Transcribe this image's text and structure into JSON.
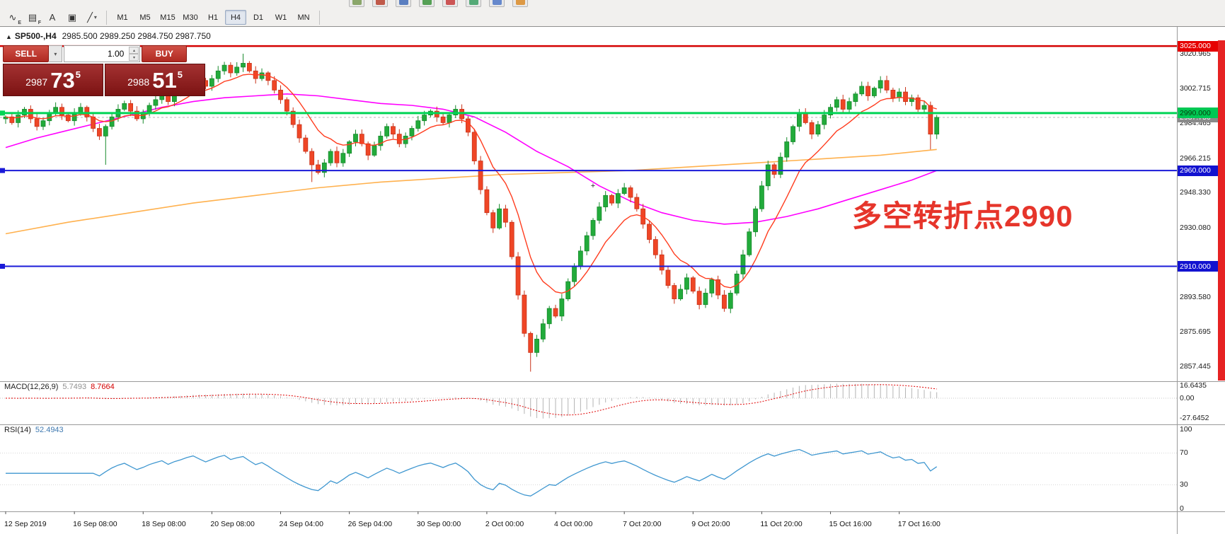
{
  "toolbar": {
    "clipped_icon_colors": [
      "#8aa66a",
      "#c05a4a",
      "#5a7ec0",
      "#55a055",
      "#cc5555",
      "#55aa77",
      "#6688cc",
      "#dd9944"
    ],
    "tools": [
      {
        "name": "market-watch-tool-icon",
        "glyph": "∿",
        "sub": "E"
      },
      {
        "name": "data-window-tool-icon",
        "glyph": "▤",
        "sub": "F"
      },
      {
        "name": "text-tool-icon",
        "glyph": "A"
      },
      {
        "name": "text-label-tool-icon",
        "glyph": "▣"
      },
      {
        "name": "line-studies-tool-icon",
        "glyph": "╱",
        "dropdown": "▾"
      }
    ],
    "timeframes": [
      "M1",
      "M5",
      "M15",
      "M30",
      "H1",
      "H4",
      "D1",
      "W1",
      "MN"
    ],
    "active_timeframe": "H4"
  },
  "chart": {
    "collapse_icon": "▲",
    "symbol_period": "SP500-,H4",
    "ohlc_text": "2985.500 2989.250 2984.750 2987.750",
    "annotation": "多空转折点2990",
    "annotation_color": "#e6352b"
  },
  "trade_panel": {
    "sell_label": "SELL",
    "buy_label": "BUY",
    "sell_dropdown_icon": "▾",
    "volume_value": "1.00",
    "spinner_up_icon": "▴",
    "spinner_down_icon": "▾",
    "sell_price": {
      "main": "2987",
      "pips": "73",
      "sup": "5"
    },
    "buy_price": {
      "main": "2988",
      "pips": "51",
      "sup": "5"
    }
  },
  "price_axis": {
    "ticks": [
      {
        "value": 3020.965,
        "label": "3020.965"
      },
      {
        "value": 3002.715,
        "label": "3002.715"
      },
      {
        "value": 2984.465,
        "label": "2984.465"
      },
      {
        "value": 2966.215,
        "label": "2966.215"
      },
      {
        "value": 2948.33,
        "label": "2948.330"
      },
      {
        "value": 2930.08,
        "label": "2930.080"
      },
      {
        "value": 2893.58,
        "label": "2893.580"
      },
      {
        "value": 2875.695,
        "label": "2875.695"
      },
      {
        "value": 2857.445,
        "label": "2857.445"
      }
    ]
  },
  "macd_panel": {
    "title": "MACD(12,26,9)",
    "value_main": "5.7493",
    "value_signal": "8.7664",
    "axis": [
      {
        "value": 16.6435,
        "label": "16.6435"
      },
      {
        "value": 0,
        "label": "0.00"
      },
      {
        "value": -27.6452,
        "label": "-27.6452"
      }
    ]
  },
  "rsi_panel": {
    "title": "RSI(14)",
    "value": "52.4943",
    "axis": [
      {
        "value": 100,
        "label": "100"
      },
      {
        "value": 70,
        "label": "70"
      },
      {
        "value": 30,
        "label": "30"
      },
      {
        "value": 0,
        "label": "0"
      }
    ]
  },
  "time_axis": {
    "labels": [
      "12 Sep 2019",
      "16 Sep 08:00",
      "18 Sep 08:00",
      "20 Sep 08:00",
      "24 Sep 04:00",
      "26 Sep 04:00",
      "30 Sep 00:00",
      "2 Oct 00:00",
      "4 Oct 00:00",
      "7 Oct 20:00",
      "9 Oct 20:00",
      "11 Oct 20:00",
      "15 Oct 16:00",
      "17 Oct 16:00"
    ]
  },
  "chart_data": {
    "type": "candlestick",
    "symbol": "SP500-",
    "timeframe": "H4",
    "last_ohlc": {
      "open": 2985.5,
      "high": 2989.25,
      "low": 2984.75,
      "close": 2987.75
    },
    "bid": 2987.75,
    "price_axis_range": [
      2850,
      3035
    ],
    "closes": [
      2988,
      2985,
      2989,
      2992,
      2987,
      2983,
      2986,
      2990,
      2993,
      2989,
      2986,
      2990,
      2993,
      2988,
      2982,
      2978,
      2983,
      2988,
      2992,
      2995,
      2991,
      2987,
      2990,
      2994,
      2997,
      3000,
      2996,
      3000,
      3003,
      3007,
      3010,
      3007,
      3004,
      3008,
      3012,
      3015,
      3011,
      3014,
      3016,
      3012,
      3008,
      3011,
      3007,
      3002,
      2997,
      2991,
      2984,
      2977,
      2970,
      2963,
      2959,
      2964,
      2970,
      2964,
      2969,
      2975,
      2979,
      2974,
      2968,
      2973,
      2978,
      2983,
      2979,
      2974,
      2978,
      2982,
      2986,
      2989,
      2991,
      2988,
      2985,
      2989,
      2992,
      2987,
      2980,
      2965,
      2950,
      2938,
      2930,
      2940,
      2933,
      2915,
      2895,
      2875,
      2865,
      2872,
      2880,
      2888,
      2884,
      2893,
      2902,
      2910,
      2918,
      2926,
      2934,
      2941,
      2947,
      2943,
      2948,
      2951,
      2946,
      2940,
      2932,
      2924,
      2916,
      2908,
      2900,
      2893,
      2898,
      2904,
      2897,
      2890,
      2896,
      2903,
      2895,
      2888,
      2896,
      2906,
      2916,
      2928,
      2940,
      2952,
      2963,
      2958,
      2967,
      2975,
      2983,
      2990,
      2985,
      2979,
      2984,
      2989,
      2993,
      2997,
      2992,
      2996,
      3000,
      3004,
      2999,
      3003,
      3007,
      3002,
      2998,
      3001,
      2996,
      2998,
      2992,
      2994,
      2979,
      2987.75
    ],
    "wick_overrides": {
      "16": {
        "low": 2963
      },
      "38": {
        "high": 3021
      },
      "49": {
        "low": 2954
      },
      "84": {
        "low": 2855
      },
      "148": {
        "low": 2971
      }
    },
    "ma_fast_period": 10,
    "ma_mid_points": [
      [
        0,
        2972
      ],
      [
        5,
        2977
      ],
      [
        10,
        2981
      ],
      [
        15,
        2985
      ],
      [
        20,
        2989
      ],
      [
        25,
        2993
      ],
      [
        30,
        2996
      ],
      [
        35,
        2998
      ],
      [
        40,
        2999
      ],
      [
        45,
        3000
      ],
      [
        50,
        2999
      ],
      [
        55,
        2997
      ],
      [
        60,
        2995
      ],
      [
        65,
        2994
      ],
      [
        70,
        2992
      ],
      [
        75,
        2988
      ],
      [
        80,
        2980
      ],
      [
        85,
        2970
      ],
      [
        90,
        2962
      ],
      [
        95,
        2952
      ],
      [
        100,
        2944
      ],
      [
        105,
        2938
      ],
      [
        110,
        2934
      ],
      [
        115,
        2932
      ],
      [
        120,
        2933
      ],
      [
        125,
        2936
      ],
      [
        130,
        2940
      ],
      [
        135,
        2945
      ],
      [
        140,
        2950
      ],
      [
        145,
        2955
      ],
      [
        149,
        2960
      ]
    ],
    "ma_slow_points": [
      [
        0,
        2927
      ],
      [
        10,
        2933
      ],
      [
        20,
        2938
      ],
      [
        30,
        2943
      ],
      [
        40,
        2947
      ],
      [
        50,
        2951
      ],
      [
        60,
        2954
      ],
      [
        70,
        2956
      ],
      [
        80,
        2958
      ],
      [
        90,
        2959
      ],
      [
        100,
        2960
      ],
      [
        110,
        2962
      ],
      [
        120,
        2964
      ],
      [
        130,
        2966
      ],
      [
        140,
        2968
      ],
      [
        149,
        2971
      ]
    ],
    "macd_params": {
      "fast": 12,
      "slow": 26,
      "signal": 9
    },
    "rsi_period": 14,
    "hlines": [
      {
        "price": 3025,
        "label": "3025.000",
        "color": "#d40000",
        "badge_bg": "#e60000",
        "badge_fg": "#ffffff",
        "width": 2.5,
        "handle": false
      },
      {
        "price": 2990,
        "label": "2990.000",
        "color": "#00d455",
        "badge_bg": "#00c853",
        "badge_fg": "#073b0c",
        "width": 3,
        "handle": true
      },
      {
        "price": 2960,
        "label": "2960.000",
        "color": "#1a1ad8",
        "badge_bg": "#1212d0",
        "badge_fg": "#ffffff",
        "width": 2,
        "handle": true
      },
      {
        "price": 2910,
        "label": "2910.000",
        "color": "#1a1ad8",
        "badge_bg": "#1212d0",
        "badge_fg": "#ffffff",
        "width": 2,
        "handle": true
      }
    ],
    "bid_badge": {
      "label": "2987.750",
      "bg": "#8a8a8a",
      "fg": "#ffffff"
    },
    "marker": {
      "bar": 94,
      "price": 2952,
      "glyph": "+"
    },
    "colors": {
      "up": "#22ab3b",
      "up_edge": "#178a2c",
      "down": "#ef4626",
      "down_edge": "#c8331a",
      "ma_fast": "#ff3c1e",
      "ma_mid": "#ff00ff",
      "ma_slow": "#ffb14e",
      "macd_hist": "#b4b4b4",
      "macd_signal": "#e00000",
      "rsi": "#3f97d0"
    }
  }
}
